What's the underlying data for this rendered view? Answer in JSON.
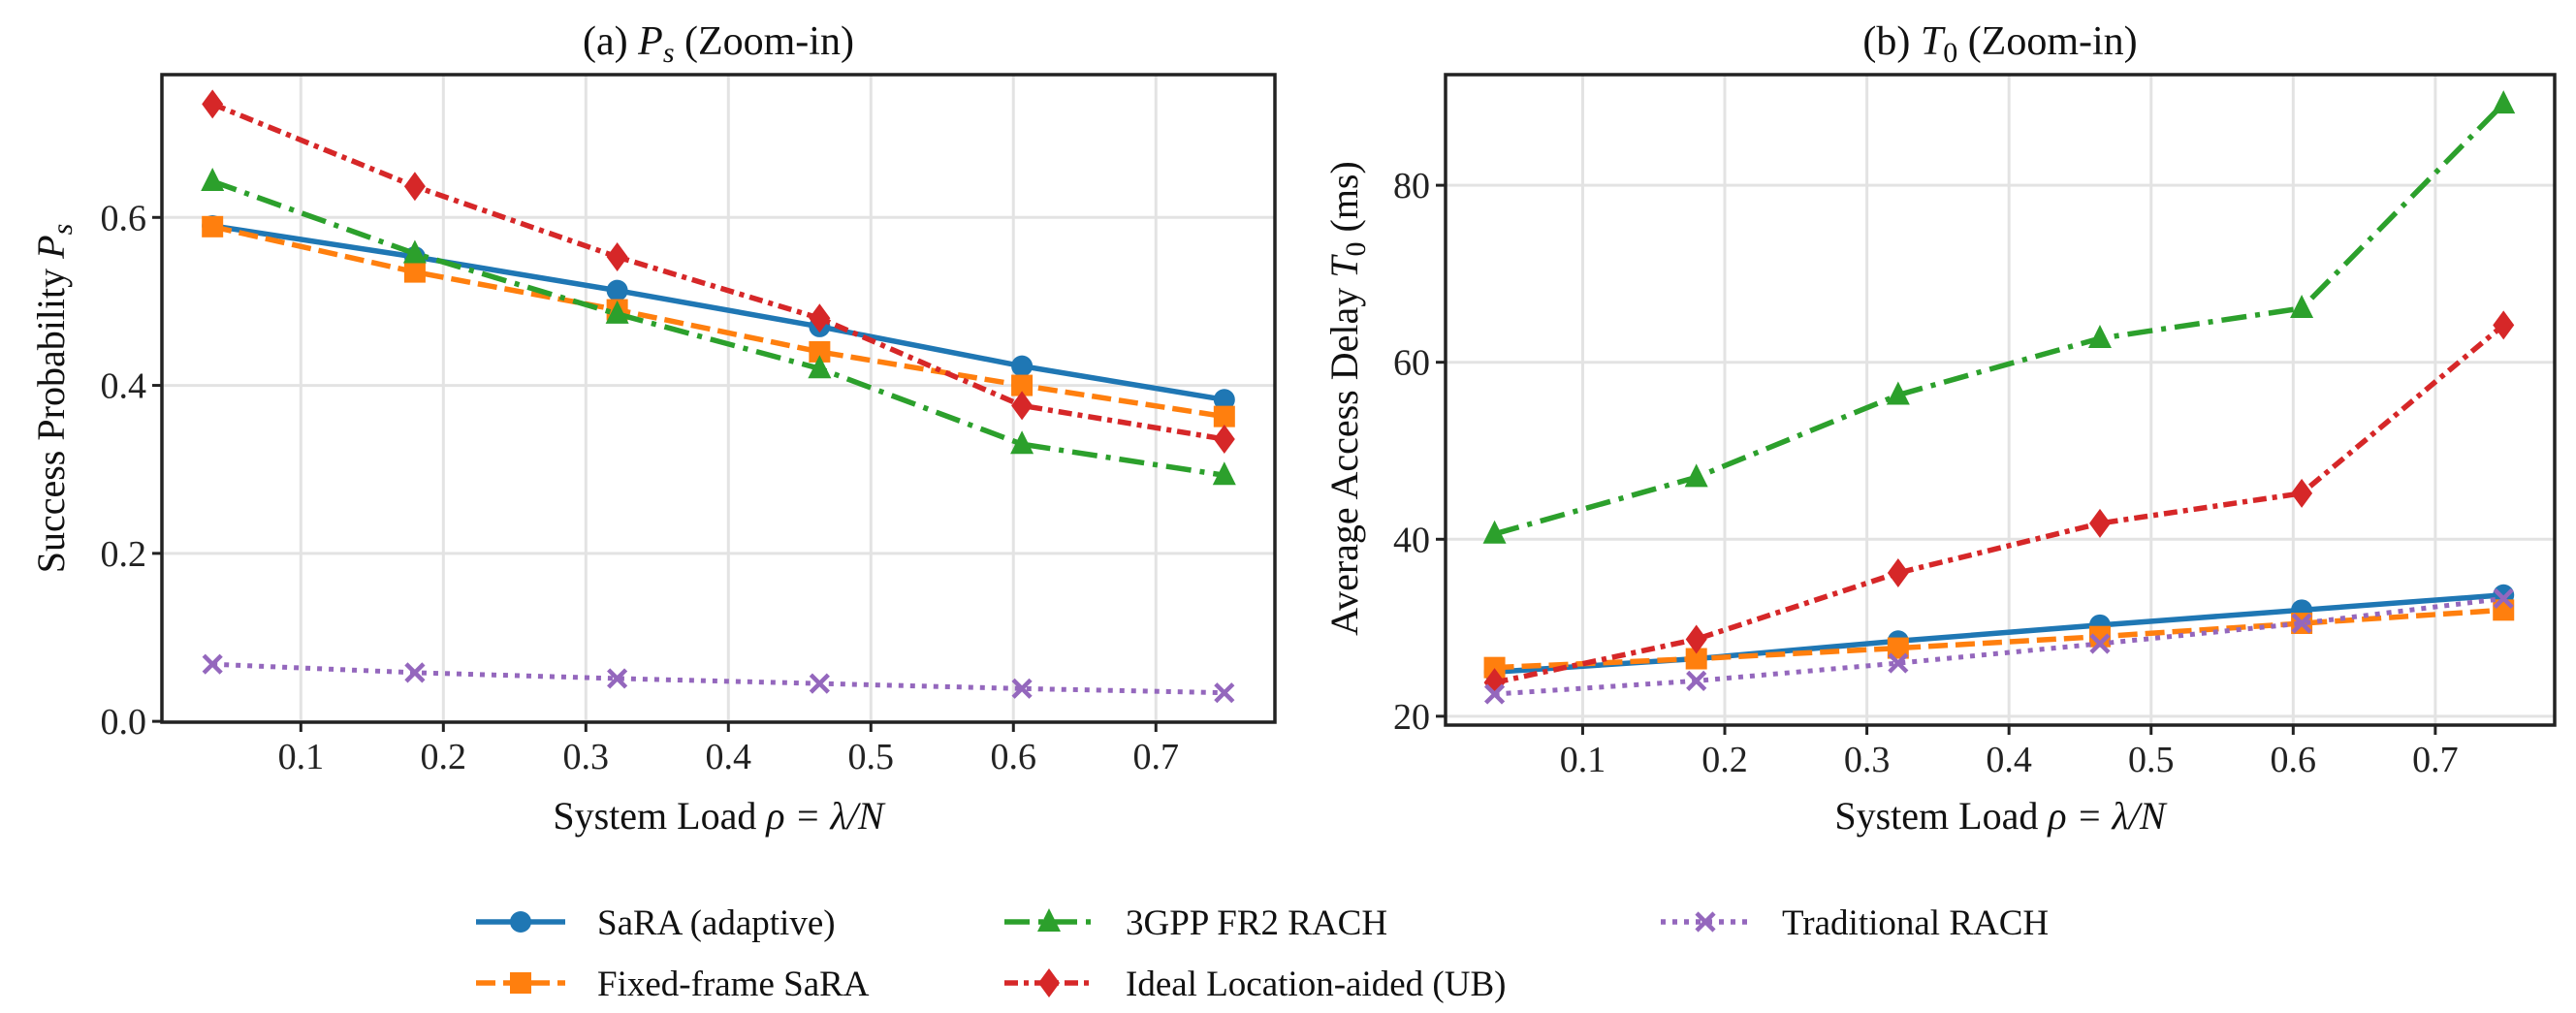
{
  "legend": {
    "entries": [
      "SaRA (adaptive)",
      "3GPP FR2 RACH",
      "Traditional RACH",
      "Fixed-frame SaRA",
      "Ideal Location-aided (UB)"
    ],
    "placement": "bottom-center"
  },
  "series_styles": [
    {
      "name": "SaRA (adaptive)",
      "color": "#1f77b4",
      "marker": "circle",
      "line": "solid"
    },
    {
      "name": "Fixed-frame SaRA",
      "color": "#ff7f0e",
      "marker": "square",
      "line": "dashed"
    },
    {
      "name": "3GPP FR2 RACH",
      "color": "#2ca02c",
      "marker": "triangle",
      "line": "dashdot"
    },
    {
      "name": "Ideal Location-aided (UB)",
      "color": "#d62728",
      "marker": "diamond",
      "line": "dashdotdot"
    },
    {
      "name": "Traditional RACH",
      "color": "#9467bd",
      "marker": "x",
      "line": "dotted"
    }
  ],
  "chart_data": [
    {
      "type": "line",
      "title_prefix": "(a) ",
      "title_symbol": "P",
      "title_sub": "s",
      "title_suffix": " (Zoom-in)",
      "xlabel_text": "System Load ",
      "xlabel_math": "ρ = λ/N",
      "ylabel_text": "Success Probability ",
      "ylabel_symbol": "P",
      "ylabel_sub": "s",
      "x": [
        0.038,
        0.18,
        0.322,
        0.464,
        0.606,
        0.748
      ],
      "xlim": [
        0.0025,
        0.7835
      ],
      "ylim": [
        -0.001,
        0.77
      ],
      "xticks": [
        0.1,
        0.2,
        0.3,
        0.4,
        0.5,
        0.6,
        0.7
      ],
      "yticks": [
        0.0,
        0.2,
        0.4,
        0.6
      ],
      "xtick_labels": [
        "0.1",
        "0.2",
        "0.3",
        "0.4",
        "0.5",
        "0.6",
        "0.7"
      ],
      "ytick_labels": [
        "0.0",
        "0.2",
        "0.4",
        "0.6"
      ],
      "grid": true,
      "series": [
        {
          "name": "SaRA (adaptive)",
          "values": [
            0.59,
            0.553,
            0.513,
            0.47,
            0.423,
            0.383
          ]
        },
        {
          "name": "Fixed-frame SaRA",
          "values": [
            0.589,
            0.535,
            0.49,
            0.44,
            0.4,
            0.363
          ]
        },
        {
          "name": "3GPP FR2 RACH",
          "values": [
            0.643,
            0.557,
            0.485,
            0.42,
            0.33,
            0.293
          ]
        },
        {
          "name": "Ideal Location-aided (UB)",
          "values": [
            0.735,
            0.637,
            0.553,
            0.48,
            0.376,
            0.336
          ]
        },
        {
          "name": "Traditional RACH",
          "values": [
            0.068,
            0.058,
            0.051,
            0.045,
            0.039,
            0.034
          ]
        }
      ]
    },
    {
      "type": "line",
      "title_prefix": "(b) ",
      "title_symbol": "T",
      "title_sub": "0",
      "title_suffix": " (Zoom-in)",
      "xlabel_text": "System Load ",
      "xlabel_math": "ρ = λ/N",
      "ylabel_text": "Average Access Delay ",
      "ylabel_symbol": "T",
      "ylabel_sub": "0",
      "ylabel_unit": " (ms)",
      "x": [
        0.038,
        0.18,
        0.322,
        0.464,
        0.606,
        0.748
      ],
      "xlim": [
        0.0035,
        0.784
      ],
      "ylim": [
        19.0,
        92.5
      ],
      "xticks": [
        0.1,
        0.2,
        0.3,
        0.4,
        0.5,
        0.6,
        0.7
      ],
      "yticks": [
        20,
        40,
        60,
        80
      ],
      "xtick_labels": [
        "0.1",
        "0.2",
        "0.3",
        "0.4",
        "0.5",
        "0.6",
        "0.7"
      ],
      "ytick_labels": [
        "20",
        "40",
        "60",
        "80"
      ],
      "grid": true,
      "series": [
        {
          "name": "SaRA (adaptive)",
          "values": [
            25.0,
            26.5,
            28.5,
            30.3,
            32.0,
            33.7
          ]
        },
        {
          "name": "Fixed-frame SaRA",
          "values": [
            25.5,
            26.5,
            27.7,
            29.0,
            30.5,
            32.0
          ]
        },
        {
          "name": "3GPP FR2 RACH",
          "values": [
            40.6,
            47.0,
            56.3,
            62.7,
            66.1,
            89.2
          ]
        },
        {
          "name": "Ideal Location-aided (UB)",
          "values": [
            23.8,
            28.7,
            36.2,
            41.8,
            45.2,
            64.2
          ]
        },
        {
          "name": "Traditional RACH",
          "values": [
            22.5,
            24.0,
            26.0,
            28.2,
            30.5,
            33.3
          ]
        }
      ]
    }
  ]
}
